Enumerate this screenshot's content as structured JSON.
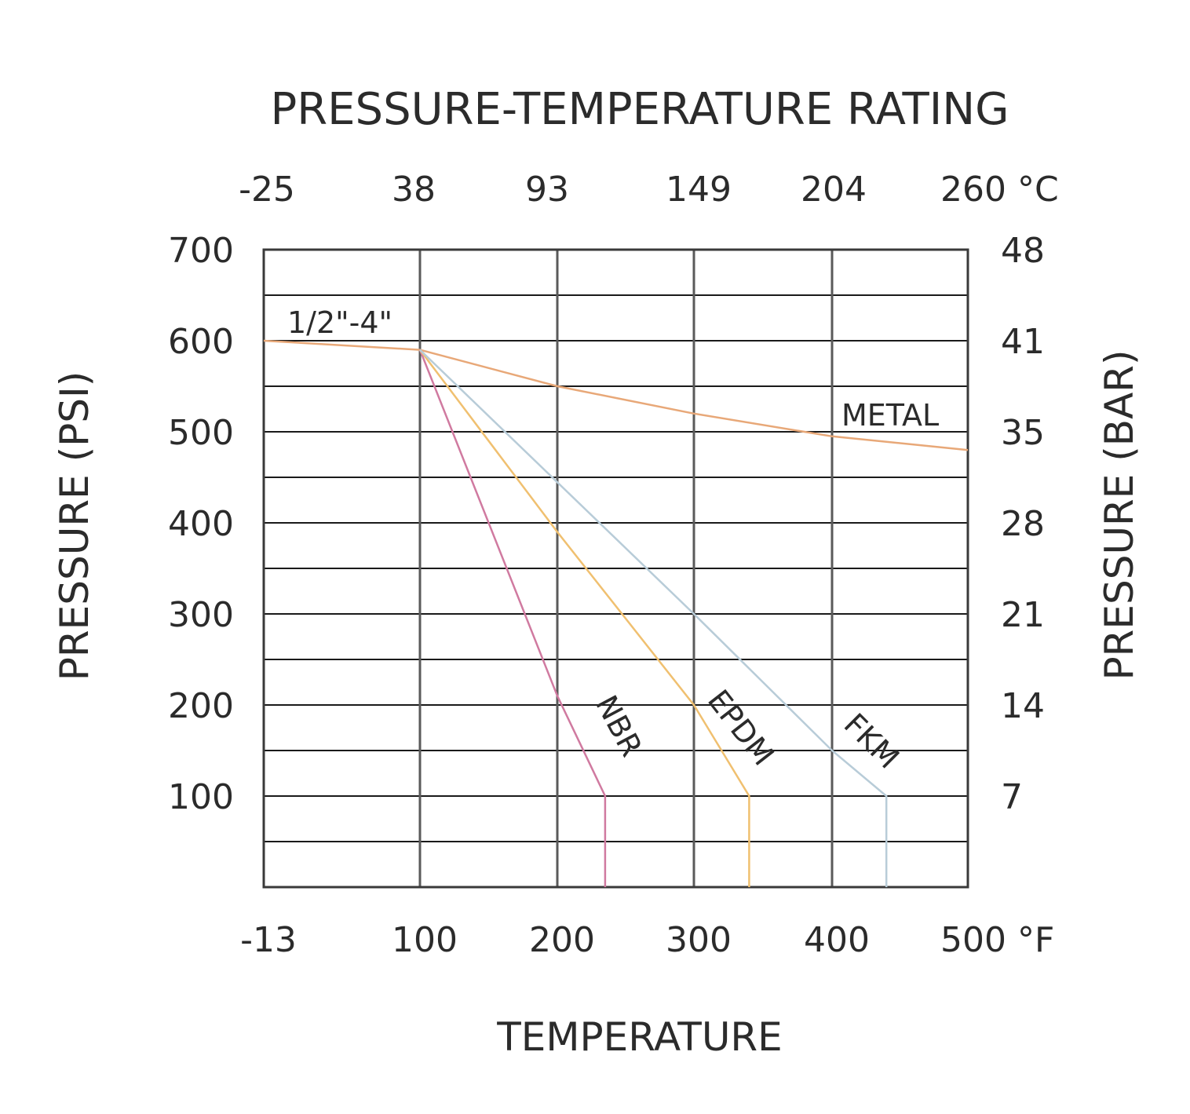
{
  "chart_data": {
    "type": "line",
    "title": "PRESSURE-TEMPERATURE RATING",
    "xlabel": "TEMPERATURE",
    "ylabel": "PRESSURE (PSI)",
    "ylabel_right": "PRESSURE (BAR)",
    "x_unit_bottom": "°F",
    "x_unit_top": "°C",
    "xlim": [
      -13,
      500
    ],
    "ylim": [
      0,
      700
    ],
    "x_ticks_bottom": [
      -13,
      100,
      200,
      300,
      400,
      500
    ],
    "x_tick_labels_bottom": [
      "-13",
      "100",
      "200",
      "300",
      "400",
      "500"
    ],
    "x_tick_labels_top": [
      "-25",
      "38",
      "93",
      "149",
      "204",
      "260"
    ],
    "y_ticks": [
      100,
      200,
      300,
      400,
      500,
      600,
      700
    ],
    "y_tick_labels_left": [
      "100",
      "200",
      "300",
      "400",
      "500",
      "600",
      "700"
    ],
    "y_tick_labels_right": [
      "7",
      "14",
      "21",
      "28",
      "35",
      "41",
      "48"
    ],
    "grid": true,
    "annotation": "1/2\"-4\"",
    "series": [
      {
        "name": "METAL",
        "color": "#e8a878",
        "x": [
          -13,
          100,
          200,
          300,
          400,
          500
        ],
        "y": [
          600,
          590,
          550,
          520,
          495,
          480
        ]
      },
      {
        "name": "NBR",
        "color": "#d07aa0",
        "x": [
          100,
          200,
          235,
          235
        ],
        "y": [
          590,
          210,
          100,
          0
        ]
      },
      {
        "name": "EPDM",
        "color": "#f0c070",
        "x": [
          100,
          200,
          300,
          340,
          340
        ],
        "y": [
          590,
          390,
          200,
          100,
          0
        ]
      },
      {
        "name": "FKM",
        "color": "#b8ccd8",
        "x": [
          100,
          300,
          400,
          440,
          440
        ],
        "y": [
          590,
          300,
          150,
          100,
          0
        ]
      }
    ]
  }
}
